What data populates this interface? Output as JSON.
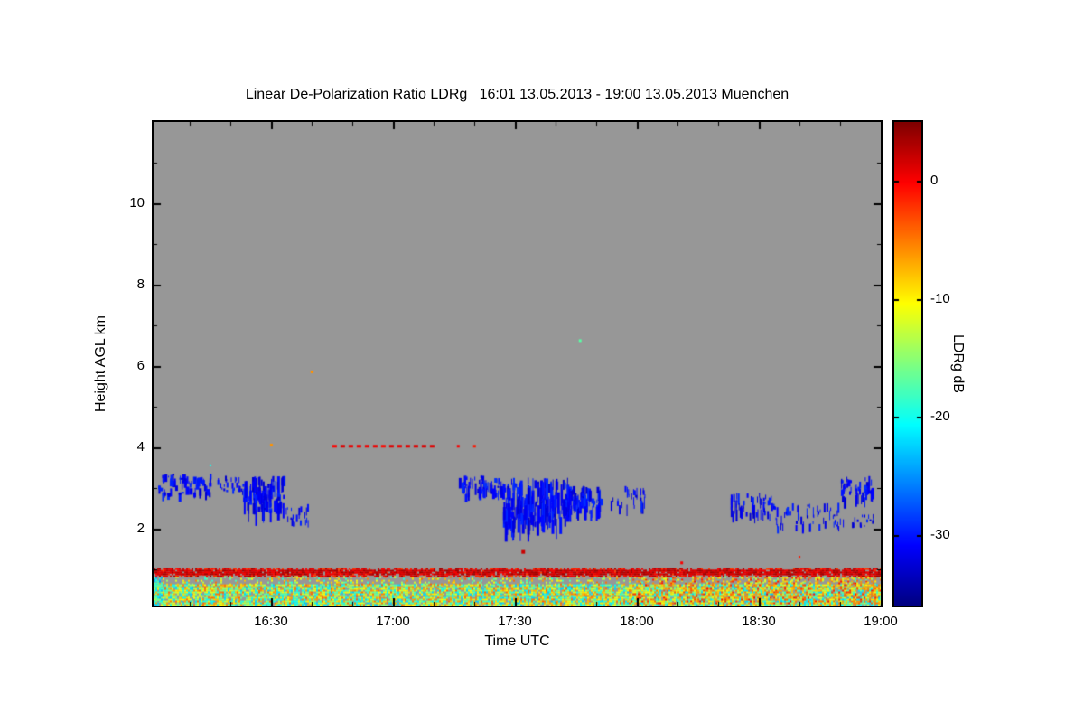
{
  "chart_data": {
    "type": "heatmap",
    "title": "Linear De-Polarization Ratio LDRg   16:01 13.05.2013 - 19:00 13.05.2013 Muenchen",
    "xlabel": "Time UTC",
    "ylabel": "Height AGL km",
    "x_range_minutes": [
      961,
      1140
    ],
    "x_minor_step_min": 10,
    "x_ticks": [
      {
        "label": "16:30",
        "t": 990
      },
      {
        "label": "17:00",
        "t": 1020
      },
      {
        "label": "17:30",
        "t": 1050
      },
      {
        "label": "18:00",
        "t": 1080
      },
      {
        "label": "18:30",
        "t": 1110
      },
      {
        "label": "19:00",
        "t": 1140
      }
    ],
    "y_range_km": [
      0.1,
      12.0
    ],
    "y_minor_step_km": 1,
    "y_ticks": [
      {
        "label": "10",
        "h": 10
      },
      {
        "label": "8",
        "h": 8
      },
      {
        "label": "6",
        "h": 6
      },
      {
        "label": "4",
        "h": 4
      },
      {
        "label": "2",
        "h": 2
      }
    ],
    "background_color": "#979797",
    "colorbar": {
      "label": "LDRg dB",
      "colormap": "jet",
      "range_db": [
        5,
        -36
      ],
      "ticks": [
        {
          "label": "0",
          "v": 0
        },
        {
          "label": "-10",
          "v": -10
        },
        {
          "label": "-20",
          "v": -20
        },
        {
          "label": "-30",
          "v": -30
        }
      ]
    },
    "features": [
      {
        "kind": "speckle",
        "t": [
          961,
          1140
        ],
        "h": [
          0.1,
          0.62
        ],
        "v": [
          -23,
          -4
        ],
        "density": 0.88,
        "cell": 2,
        "note": "ground clutter band cyan-green-yellow"
      },
      {
        "kind": "speckle",
        "t": [
          961,
          1140
        ],
        "h": [
          0.62,
          0.82
        ],
        "v": [
          -20,
          -4
        ],
        "density": 0.25,
        "cell": 2,
        "note": "sparse speckle between clutter and layer"
      },
      {
        "kind": "speckle",
        "t": [
          961,
          1140
        ],
        "h": [
          0.82,
          1.02
        ],
        "v": [
          -3,
          4
        ],
        "density": 0.65,
        "cell": 2,
        "note": "strong red layer ~0.9 km"
      },
      {
        "kind": "speckle",
        "t": [
          961,
          1140
        ],
        "h": [
          0.88,
          0.98
        ],
        "v": [
          0,
          4
        ],
        "density": 0.8,
        "cell": 2,
        "note": "dark red core of layer"
      },
      {
        "kind": "speckle",
        "t": [
          1078,
          1140
        ],
        "h": [
          0.15,
          0.8
        ],
        "v": [
          -12,
          0
        ],
        "density": 0.3,
        "cell": 2,
        "note": "warmer clutter after 18:00"
      },
      {
        "kind": "speckle",
        "t": [
          961,
          963
        ],
        "h": [
          0.1,
          0.8
        ],
        "v": [
          -25,
          -15
        ],
        "density": 0.6,
        "cell": 2,
        "note": "left-edge cyan strip"
      },
      {
        "kind": "dashline",
        "t": [
          1005,
          1033
        ],
        "h": 4.02,
        "v": 0.5,
        "thick": 3,
        "dash": [
          5,
          4
        ],
        "density": 0.85,
        "note": "red dotted line at 4 km"
      },
      {
        "kind": "streaks",
        "t": [
          962,
          975
        ],
        "h": [
          2.85,
          3.35
        ],
        "count": 70,
        "wmax": 4,
        "lkm": [
          0.04,
          0.22
        ],
        "note": "blue cloud streaks 16:02-16:15"
      },
      {
        "kind": "streaks",
        "t": [
          975,
          983
        ],
        "h": [
          2.9,
          3.3
        ],
        "count": 25,
        "wmax": 2,
        "lkm": [
          0.04,
          0.15
        ]
      },
      {
        "kind": "streaks",
        "t": [
          983,
          993
        ],
        "h": [
          2.45,
          3.3
        ],
        "count": 110,
        "wmax": 3,
        "lkm": [
          0.08,
          0.45
        ],
        "note": "dense vertical streaks ~16:25"
      },
      {
        "kind": "streaks",
        "t": [
          993,
          999
        ],
        "h": [
          2.15,
          2.6
        ],
        "count": 20,
        "wmax": 2,
        "lkm": [
          0.05,
          0.2
        ]
      },
      {
        "kind": "streaks",
        "t": [
          1036,
          1047
        ],
        "h": [
          2.8,
          3.3
        ],
        "count": 60,
        "wmax": 3,
        "lkm": [
          0.05,
          0.3
        ]
      },
      {
        "kind": "streaks",
        "t": [
          1047,
          1063
        ],
        "h": [
          2.15,
          3.25
        ],
        "count": 200,
        "wmax": 3,
        "lkm": [
          0.1,
          0.55
        ],
        "note": "large dense cluster ~17:30"
      },
      {
        "kind": "streaks",
        "t": [
          1063,
          1071
        ],
        "h": [
          2.45,
          3.05
        ],
        "count": 70,
        "wmax": 3,
        "lkm": [
          0.08,
          0.35
        ]
      },
      {
        "kind": "streaks",
        "t": [
          1073,
          1082
        ],
        "h": [
          2.55,
          3.05
        ],
        "count": 30,
        "wmax": 2,
        "lkm": [
          0.05,
          0.3
        ]
      },
      {
        "kind": "streaks",
        "t": [
          1103,
          1113
        ],
        "h": [
          2.35,
          2.9
        ],
        "count": 55,
        "wmax": 2,
        "lkm": [
          0.05,
          0.3
        ]
      },
      {
        "kind": "streaks",
        "t": [
          1113,
          1131
        ],
        "h": [
          2.05,
          2.65
        ],
        "count": 60,
        "wmax": 2,
        "lkm": [
          0.04,
          0.25
        ]
      },
      {
        "kind": "streaks",
        "t": [
          1130,
          1138
        ],
        "h": [
          2.75,
          3.3
        ],
        "count": 45,
        "wmax": 3,
        "lkm": [
          0.06,
          0.3
        ]
      },
      {
        "kind": "streaks",
        "t": [
          1132,
          1139
        ],
        "h": [
          2.05,
          2.35
        ],
        "count": 15,
        "wmax": 2,
        "lkm": [
          0.04,
          0.15
        ]
      },
      {
        "kind": "dots",
        "points": [
          [
            1036,
            4.02,
            0,
            3
          ],
          [
            1040,
            4.02,
            -1,
            3
          ],
          [
            990,
            4.05,
            -6,
            3
          ],
          [
            1000,
            5.85,
            -6,
            3
          ],
          [
            1066,
            6.62,
            -17,
            3
          ],
          [
            1052,
            1.42,
            2,
            4
          ],
          [
            1091,
            1.15,
            0,
            3
          ],
          [
            1120,
            1.3,
            -1,
            2
          ],
          [
            975,
            3.55,
            -20,
            2
          ]
        ],
        "note": "isolated specks"
      }
    ]
  }
}
